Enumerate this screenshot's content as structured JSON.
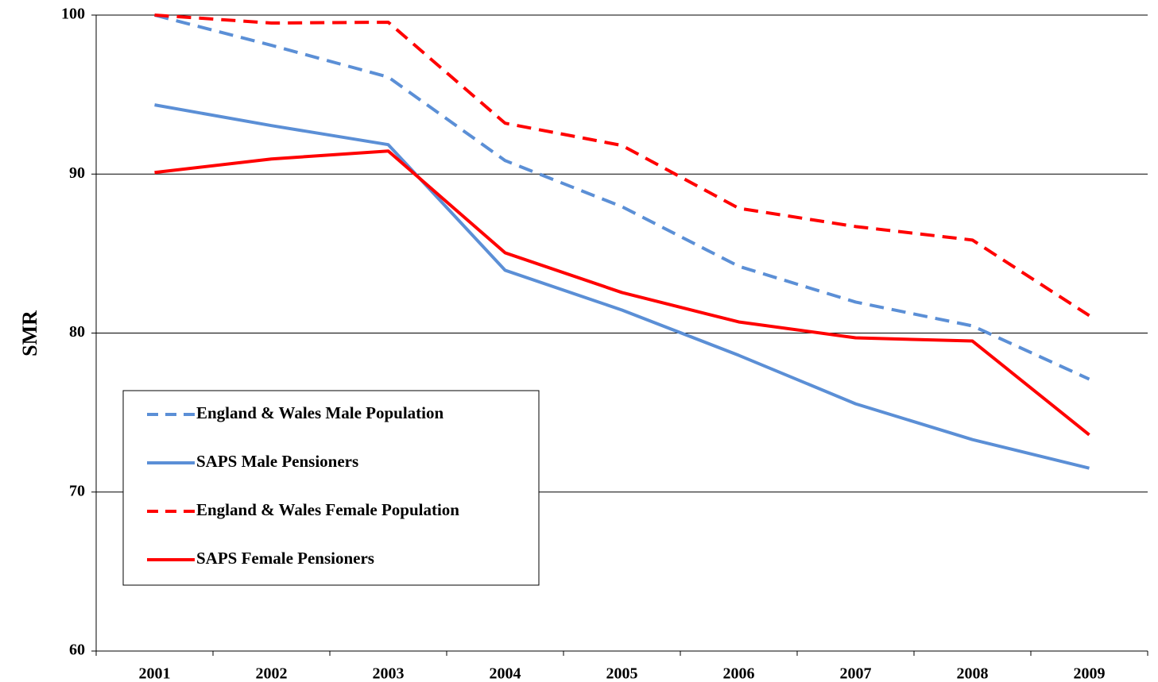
{
  "chart_data": {
    "type": "line",
    "y_label": "SMR",
    "categories": [
      "2001",
      "2002",
      "2003",
      "2004",
      "2005",
      "2006",
      "2007",
      "2008",
      "2009"
    ],
    "series": [
      {
        "name": "England & Wales Male Population",
        "color": "#5b8fd6",
        "dashed": true,
        "values": [
          100,
          98.1,
          96.1,
          90.85,
          87.95,
          84.2,
          81.95,
          80.45,
          77.1
        ]
      },
      {
        "name": "SAPS Male Pensioners",
        "color": "#5b8fd6",
        "dashed": false,
        "values": [
          94.35,
          93.05,
          91.85,
          83.95,
          81.45,
          78.6,
          75.55,
          73.3,
          71.5
        ]
      },
      {
        "name": "England & Wales Female Population",
        "color": "#ff0000",
        "dashed": true,
        "values": [
          100,
          99.5,
          99.55,
          93.2,
          91.8,
          87.85,
          86.7,
          85.85,
          81.1
        ]
      },
      {
        "name": "SAPS Female Pensioners",
        "color": "#ff0000",
        "dashed": false,
        "values": [
          90.1,
          90.95,
          91.45,
          85.05,
          82.55,
          80.7,
          79.7,
          79.5,
          73.6
        ]
      }
    ],
    "ylim": [
      60,
      100
    ],
    "yticks": [
      60,
      70,
      80,
      90,
      100
    ],
    "grid": true,
    "legend": "lower-left"
  }
}
